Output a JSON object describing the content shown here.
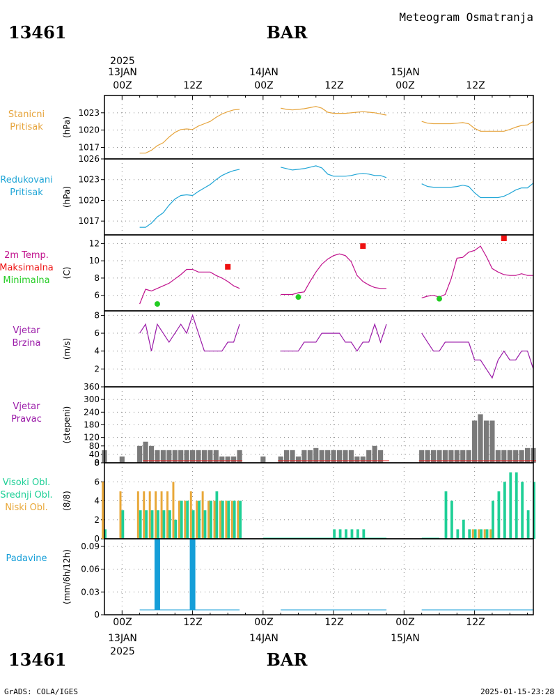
{
  "header": {
    "station_left": "13461",
    "station_center": "BAR",
    "title": "Meteogram Osmatranja"
  },
  "footer": {
    "station_left": "13461",
    "station_center": "BAR",
    "credit": "GrADS: COLA/IGES",
    "timestamp": "2025-01-15-23:28"
  },
  "time_axis": {
    "year": "2025",
    "days": [
      "13JAN",
      "14JAN",
      "15JAN"
    ],
    "hour_labels": [
      "00Z",
      "12Z",
      "00Z",
      "12Z",
      "00Z",
      "12Z"
    ]
  },
  "colors": {
    "pressure": "#e6a43c",
    "reduced": "#1fa5d6",
    "temp_line": "#c0108c",
    "tmax": "#ee1111",
    "tmin": "#22cc22",
    "wind_speed": "#9a1aa8",
    "wind_dir": "#7a7a7a",
    "cloud_high": "#1ecf96",
    "cloud_low": "#e8a738",
    "precip": "#159ed8"
  },
  "chart_data": [
    {
      "type": "line",
      "labels": [
        "Stanicni",
        "Pritisak"
      ],
      "ylabel": "(hPa)",
      "yticks": [
        "1017",
        "1020",
        "1023"
      ],
      "ylim": [
        1015,
        1026
      ],
      "x_unit": "hours since 2025-01-13 00Z",
      "series": [
        {
          "x": [
            3,
            4,
            5,
            6,
            7,
            8,
            9,
            10,
            11,
            12,
            13,
            14,
            15,
            16,
            17,
            18,
            19,
            20
          ],
          "y": [
            1016.0,
            1016.0,
            1016.5,
            1017.3,
            1017.8,
            1018.8,
            1019.6,
            1020.1,
            1020.2,
            1020.1,
            1020.7,
            1021.1,
            1021.5,
            1022.2,
            1022.8,
            1023.2,
            1023.5,
            1023.6
          ]
        },
        {
          "x": [
            27,
            28,
            29,
            30,
            31,
            32,
            33,
            34,
            35,
            36,
            37,
            38,
            39,
            40,
            41,
            42,
            43,
            44,
            45
          ],
          "y": [
            1023.8,
            1023.6,
            1023.5,
            1023.6,
            1023.7,
            1023.9,
            1024.1,
            1023.8,
            1023.1,
            1022.9,
            1022.9,
            1022.9,
            1023.0,
            1023.1,
            1023.2,
            1023.1,
            1023.0,
            1022.8,
            1022.6
          ]
        },
        {
          "x": [
            51,
            52,
            53,
            54,
            55,
            56,
            57,
            58,
            59,
            60,
            61,
            62,
            63,
            64,
            65,
            66,
            67,
            68,
            69,
            70
          ],
          "y": [
            1021.5,
            1021.2,
            1021.1,
            1021.1,
            1021.1,
            1021.1,
            1021.2,
            1021.3,
            1021.1,
            1020.3,
            1019.8,
            1019.8,
            1019.8,
            1019.8,
            1019.8,
            1020.1,
            1020.5,
            1020.8,
            1020.9,
            1021.5
          ]
        }
      ]
    },
    {
      "type": "line",
      "labels": [
        "Redukovani",
        "Pritisak"
      ],
      "ylabel": "(hPa)",
      "yticks": [
        "1017",
        "1020",
        "1023",
        "1026"
      ],
      "ylim": [
        1015,
        1026
      ],
      "x_unit": "hours since 2025-01-13 00Z",
      "series": [
        {
          "x": [
            3,
            4,
            5,
            6,
            7,
            8,
            9,
            10,
            11,
            12,
            13,
            14,
            15,
            16,
            17,
            18,
            19,
            20
          ],
          "y": [
            1016.1,
            1016.1,
            1016.7,
            1017.6,
            1018.2,
            1019.3,
            1020.2,
            1020.7,
            1020.8,
            1020.7,
            1021.3,
            1021.8,
            1022.3,
            1023.0,
            1023.6,
            1024.0,
            1024.3,
            1024.5
          ]
        },
        {
          "x": [
            27,
            28,
            29,
            30,
            31,
            32,
            33,
            34,
            35,
            36,
            37,
            38,
            39,
            40,
            41,
            42,
            43,
            44,
            45
          ],
          "y": [
            1024.8,
            1024.6,
            1024.4,
            1024.5,
            1024.6,
            1024.8,
            1025.0,
            1024.7,
            1023.8,
            1023.5,
            1023.5,
            1023.5,
            1023.6,
            1023.8,
            1023.9,
            1023.8,
            1023.6,
            1023.6,
            1023.3
          ]
        },
        {
          "x": [
            51,
            52,
            53,
            54,
            55,
            56,
            57,
            58,
            59,
            60,
            61,
            62,
            63,
            64,
            65,
            66,
            67,
            68,
            69,
            70
          ],
          "y": [
            1022.4,
            1022.0,
            1021.9,
            1021.9,
            1021.9,
            1021.9,
            1022.0,
            1022.2,
            1022.0,
            1021.1,
            1020.4,
            1020.4,
            1020.4,
            1020.4,
            1020.6,
            1021.0,
            1021.5,
            1021.8,
            1021.8,
            1022.5
          ]
        }
      ]
    },
    {
      "type": "line",
      "labels": [
        "2m Temp.",
        "Maksimalna",
        "Minimalna"
      ],
      "ylabel": "(C)",
      "yticks": [
        "6",
        "8",
        "10",
        "12"
      ],
      "ylim": [
        4.2,
        13
      ],
      "x_unit": "hours since 2025-01-13 00Z",
      "series": [
        {
          "x": [
            3,
            4,
            5,
            6,
            7,
            8,
            9,
            10,
            11,
            12,
            13,
            14,
            15,
            16,
            17,
            18,
            19,
            20
          ],
          "y": [
            5.0,
            6.7,
            6.5,
            6.8,
            7.1,
            7.4,
            7.9,
            8.4,
            9.0,
            9.0,
            8.7,
            8.7,
            8.7,
            8.3,
            8.0,
            7.6,
            7.1,
            6.8
          ]
        },
        {
          "x": [
            27,
            28,
            29,
            30,
            31,
            32,
            33,
            34,
            35,
            36,
            37,
            38,
            39,
            40,
            41,
            42,
            43,
            44,
            45
          ],
          "y": [
            6.1,
            6.1,
            6.1,
            6.3,
            6.4,
            7.6,
            8.7,
            9.6,
            10.2,
            10.6,
            10.8,
            10.6,
            9.9,
            8.3,
            7.6,
            7.2,
            6.9,
            6.8,
            6.8
          ]
        },
        {
          "x": [
            51,
            52,
            53,
            54,
            55,
            56,
            57,
            58,
            59,
            60,
            61,
            62,
            63,
            64,
            65,
            66,
            67,
            68,
            69,
            70
          ],
          "y": [
            5.7,
            5.9,
            6.0,
            5.8,
            6.1,
            7.9,
            10.3,
            10.4,
            11.0,
            11.2,
            11.7,
            10.5,
            9.1,
            8.7,
            8.4,
            8.3,
            8.3,
            8.5,
            8.3,
            8.3
          ]
        }
      ],
      "tmax_points": [
        {
          "x": 18,
          "y": 9.3
        },
        {
          "x": 41,
          "y": 11.7
        },
        {
          "x": 65,
          "y": 12.6
        }
      ],
      "tmin_points": [
        {
          "x": 6,
          "y": 5.0
        },
        {
          "x": 30,
          "y": 5.8
        },
        {
          "x": 54,
          "y": 5.6
        }
      ]
    },
    {
      "type": "line",
      "labels": [
        "Vjetar",
        "Brzina"
      ],
      "ylabel": "(m/s)",
      "yticks": [
        "2",
        "4",
        "6",
        "8"
      ],
      "ylim": [
        0,
        8.5
      ],
      "x_unit": "hours since 2025-01-13 00Z",
      "series": [
        {
          "x": [
            3,
            4,
            5,
            6,
            7,
            8,
            9,
            10,
            11,
            12,
            13,
            14,
            15,
            16,
            17,
            18,
            19,
            20
          ],
          "y": [
            6,
            7,
            4,
            7,
            6,
            5,
            6,
            7,
            6,
            8,
            6,
            4,
            4,
            4,
            4,
            5,
            5,
            7
          ]
        },
        {
          "x": [
            27,
            28,
            29,
            30,
            31,
            32,
            33,
            34,
            35,
            36,
            37,
            38,
            39,
            40,
            41,
            42,
            43,
            44,
            45
          ],
          "y": [
            4,
            4,
            4,
            4,
            5,
            5,
            5,
            6,
            6,
            6,
            6,
            5,
            5,
            4,
            5,
            5,
            7,
            5,
            7
          ]
        },
        {
          "x": [
            51,
            52,
            53,
            54,
            55,
            56,
            57,
            58,
            59,
            60,
            61,
            62,
            63,
            64,
            65,
            66,
            67,
            68,
            69,
            70
          ],
          "y": [
            6,
            5,
            4,
            4,
            5,
            5,
            5,
            5,
            5,
            3,
            3,
            2,
            1,
            3,
            4,
            3,
            3,
            4,
            4,
            2
          ]
        }
      ]
    },
    {
      "type": "bar",
      "labels": [
        "Vjetar",
        "Pravac"
      ],
      "ylabel": "(stepeni)",
      "yticks": [
        "0",
        "40",
        "80",
        "120",
        "180",
        "240",
        "300",
        "360"
      ],
      "ylim": [
        0,
        360
      ],
      "x_unit": "hours since 2025-01-13 00Z",
      "x": [
        -3,
        0,
        3,
        4,
        5,
        6,
        7,
        8,
        9,
        10,
        11,
        12,
        13,
        14,
        15,
        16,
        17,
        18,
        19,
        20,
        24,
        27,
        28,
        29,
        30,
        31,
        32,
        33,
        34,
        35,
        36,
        37,
        38,
        39,
        40,
        41,
        42,
        43,
        44,
        45,
        51,
        52,
        53,
        54,
        55,
        56,
        57,
        58,
        59,
        60,
        61,
        62,
        63,
        64,
        65,
        66,
        67,
        68,
        69,
        70
      ],
      "values": [
        60,
        30,
        80,
        100,
        80,
        60,
        60,
        60,
        60,
        60,
        60,
        60,
        60,
        60,
        60,
        60,
        30,
        30,
        30,
        60,
        30,
        30,
        60,
        60,
        30,
        60,
        60,
        70,
        60,
        60,
        60,
        60,
        60,
        60,
        30,
        30,
        60,
        80,
        60,
        0,
        60,
        60,
        60,
        60,
        60,
        60,
        60,
        60,
        60,
        200,
        230,
        200,
        200,
        60,
        60,
        60,
        60,
        60,
        70,
        70
      ]
    },
    {
      "type": "bar",
      "labels": [
        "Visoki Obl.",
        "Srednji Obl.",
        "Niski Obl."
      ],
      "ylabel": "(8/8)",
      "yticks": [
        "0",
        "2",
        "4",
        "6",
        "8"
      ],
      "ylim": [
        0,
        8
      ],
      "x_unit": "hours since 2025-01-13 00Z",
      "series": [
        {
          "name": "Visoki Obl.",
          "x": [
            -3,
            0,
            3,
            4,
            5,
            6,
            7,
            8,
            9,
            10,
            11,
            12,
            13,
            14,
            15,
            16,
            17,
            18,
            19,
            20,
            36,
            37,
            38,
            39,
            40,
            41,
            55,
            56,
            57,
            58,
            59,
            60,
            61,
            62,
            63,
            64,
            65,
            66,
            67,
            68,
            69,
            70
          ],
          "values": [
            1,
            3,
            3,
            3,
            3,
            3,
            3,
            3,
            2,
            4,
            4,
            3,
            4,
            3,
            4,
            5,
            4,
            4,
            4,
            4,
            1,
            1,
            1,
            1,
            1,
            1,
            5,
            4,
            1,
            2,
            1,
            1,
            1,
            1,
            4,
            5,
            6,
            7,
            7,
            6,
            3,
            6
          ]
        },
        {
          "name": "Niski Obl.",
          "x": [
            -3,
            0,
            3,
            4,
            5,
            6,
            7,
            8,
            9,
            10,
            11,
            12,
            13,
            14,
            15,
            16,
            17,
            18,
            19,
            20,
            60,
            61,
            62,
            63
          ],
          "values": [
            6,
            5,
            5,
            5,
            5,
            5,
            5,
            5,
            6,
            4,
            4,
            5,
            4,
            5,
            4,
            4,
            4,
            4,
            4,
            4,
            1,
            1,
            1,
            1
          ]
        }
      ]
    },
    {
      "type": "bar",
      "labels": [
        "Padavine"
      ],
      "ylabel": "(mm/6h/12h)",
      "yticks": [
        "0",
        "0.03",
        "0.06",
        "0.09"
      ],
      "ylim": [
        0,
        0.1
      ],
      "x_unit": "hours since 2025-01-13 00Z",
      "x": [
        6,
        12
      ],
      "values": [
        0.1,
        0.1
      ]
    }
  ]
}
